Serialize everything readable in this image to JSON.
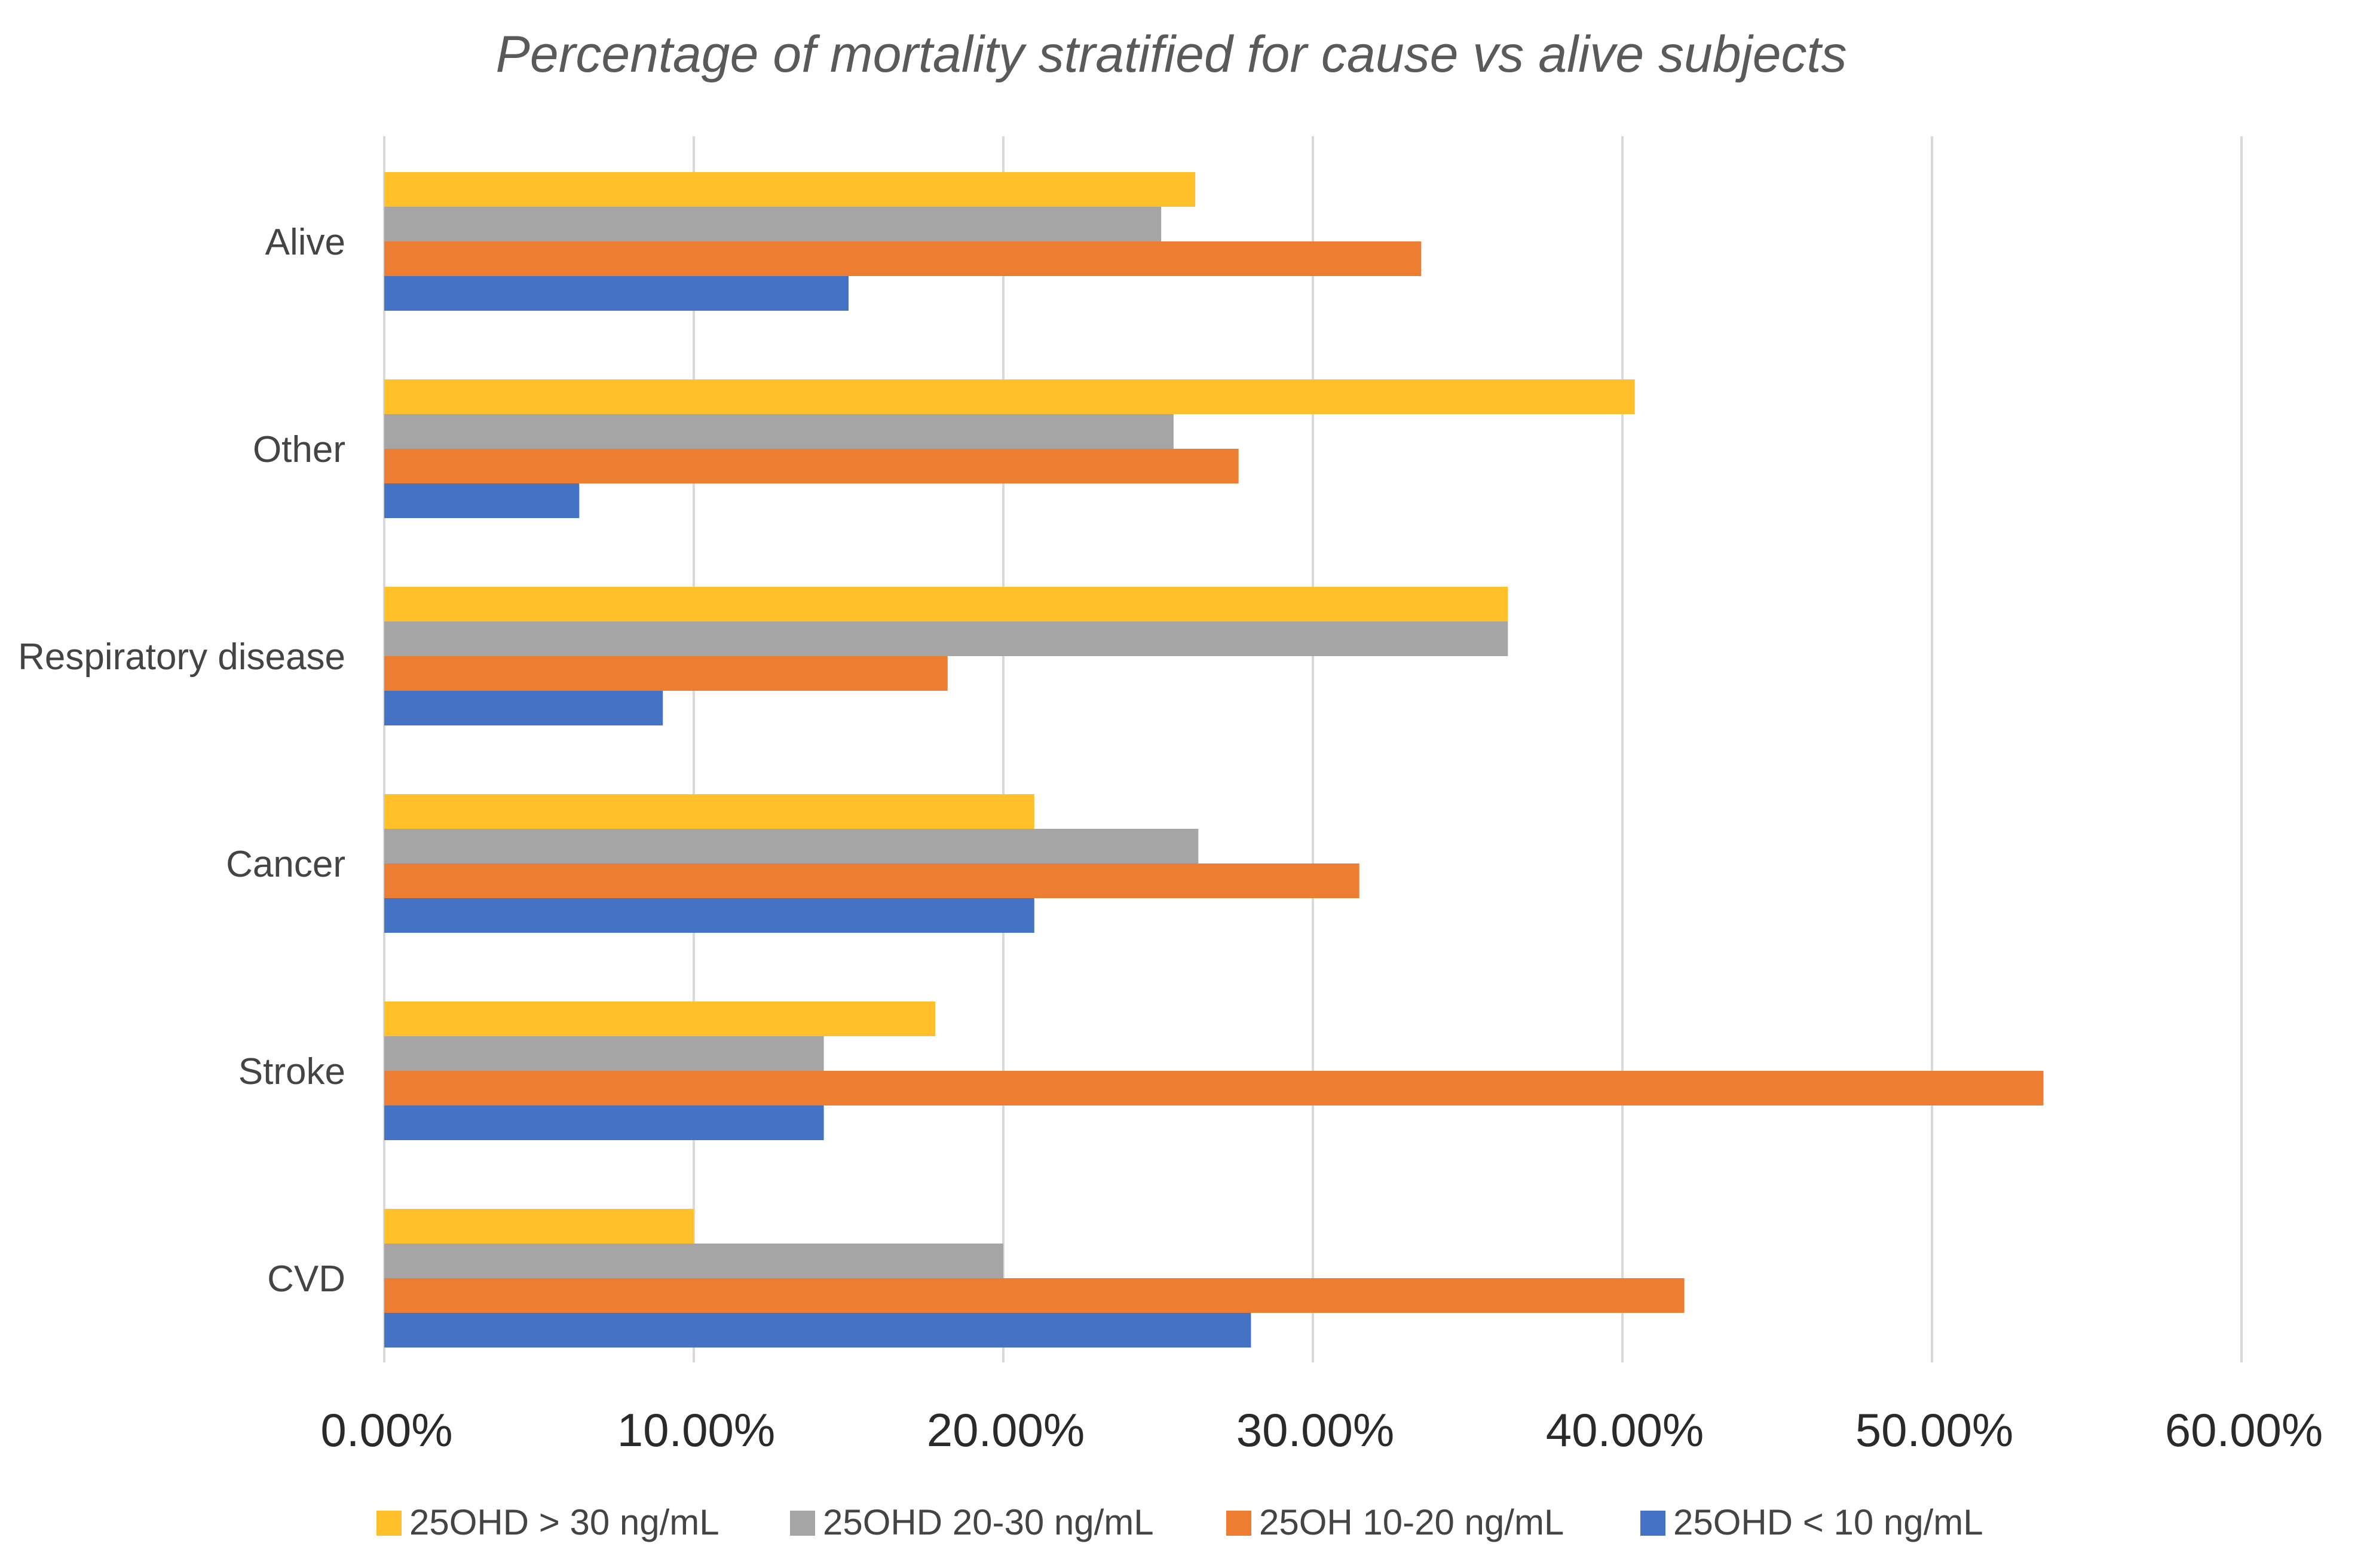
{
  "chart_data": {
    "type": "bar",
    "orientation": "horizontal",
    "title": "Percentage of mortality stratified for cause vs alive subjects",
    "xlabel": "",
    "ylabel": "",
    "xlim": [
      0,
      60
    ],
    "x_ticks": [
      0,
      10,
      20,
      30,
      40,
      50,
      60
    ],
    "x_tick_labels": [
      "0.00%",
      "10.00%",
      "20.00%",
      "30.00%",
      "40.00%",
      "50.00%",
      "60.00%"
    ],
    "categories": [
      "Alive",
      "Other",
      "Respiratory disease",
      "Cancer",
      "Stroke",
      "CVD"
    ],
    "series": [
      {
        "name": "25OHD > 30 ng/mL",
        "color": "#FFC02A",
        "values": [
          26.2,
          40.4,
          36.3,
          21.0,
          17.8,
          10.0
        ]
      },
      {
        "name": "25OHD 20-30 ng/mL",
        "color": "#A5A5A5",
        "values": [
          25.1,
          25.5,
          36.3,
          26.3,
          14.2,
          20.0
        ]
      },
      {
        "name": "25OH 10-20 ng/mL",
        "color": "#ED7D31",
        "values": [
          33.5,
          27.6,
          18.2,
          31.5,
          53.6,
          42.0
        ]
      },
      {
        "name": "25OHD < 10 ng/mL",
        "color": "#4472C4",
        "values": [
          15.0,
          6.3,
          9.0,
          21.0,
          14.2,
          28.0
        ]
      }
    ],
    "grid": true,
    "legend_position": "bottom"
  }
}
